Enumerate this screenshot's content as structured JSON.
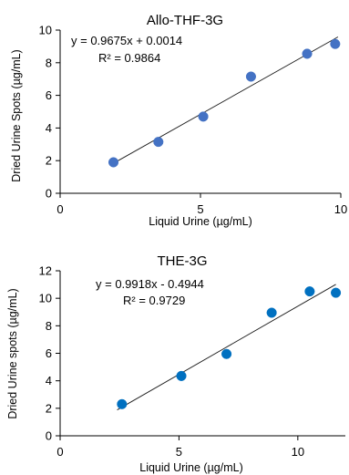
{
  "chart_data": [
    {
      "type": "scatter",
      "title": "Allo-THF-3G",
      "xlabel": "Liquid Urine (µg/mL)",
      "ylabel": "Dried Urine Spots (µg/mL)",
      "xlim": [
        0,
        10
      ],
      "ylim": [
        0,
        10
      ],
      "xticks": [
        "0",
        "5",
        "10"
      ],
      "yticks": [
        "0",
        "2",
        "4",
        "6",
        "8",
        "10"
      ],
      "grid": false,
      "marker_color": "#4472c4",
      "series": [
        {
          "x": [
            1.9,
            3.5,
            5.1,
            6.8,
            8.8,
            9.8
          ],
          "y": [
            1.9,
            3.15,
            4.7,
            7.15,
            8.55,
            9.15
          ]
        }
      ],
      "trendline": {
        "slope": 0.9675,
        "intercept": 0.0014,
        "x_range": [
          1.9,
          9.9
        ]
      },
      "equation": "y = 0.9675x + 0.0014",
      "r_squared": "R² = 0.9864"
    },
    {
      "type": "scatter",
      "title": "THE-3G",
      "xlabel": "Liquid Urine (µg/mL)",
      "ylabel": "Dried Urine spots (µg/mL)",
      "xlim": [
        0,
        12
      ],
      "ylim": [
        0,
        12
      ],
      "xticks": [
        "0",
        "5",
        "10"
      ],
      "yticks": [
        "0",
        "2",
        "4",
        "6",
        "8",
        "10",
        "12"
      ],
      "grid": false,
      "marker_color": "#0070c0",
      "series": [
        {
          "x": [
            2.6,
            5.1,
            7.0,
            8.9,
            10.5,
            11.6
          ],
          "y": [
            2.3,
            4.35,
            5.95,
            8.95,
            10.5,
            10.4
          ]
        }
      ],
      "trendline": {
        "slope": 0.9918,
        "intercept": -0.4944,
        "x_range": [
          2.4,
          11.6
        ]
      },
      "equation": "y = 0.9918x - 0.4944",
      "r_squared": "R² = 0.9729"
    }
  ]
}
